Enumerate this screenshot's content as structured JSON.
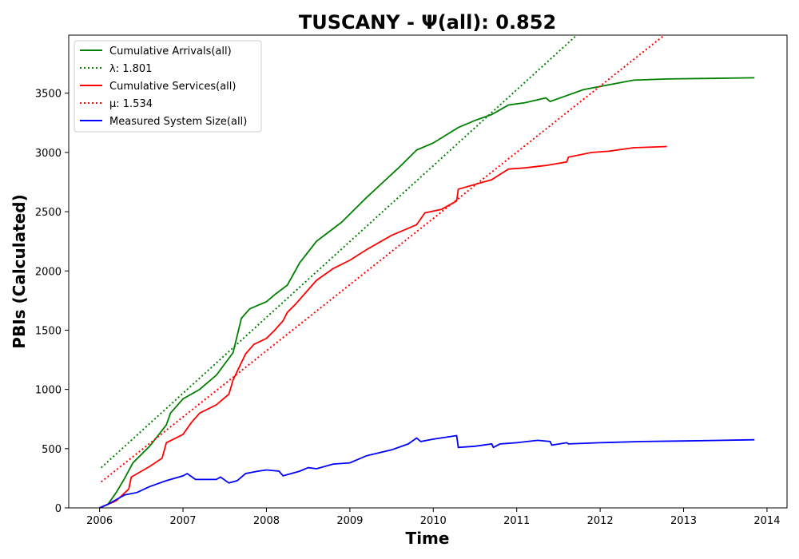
{
  "chart_data": {
    "type": "line",
    "title": "TUSCANY -  Ψ(all): 0.852",
    "xlabel": "Time",
    "ylabel": "PBIs (Calculated)",
    "xlim": [
      2005.63,
      2014.24
    ],
    "ylim": [
      0,
      3990
    ],
    "x_ticks": [
      2006,
      2007,
      2008,
      2009,
      2010,
      2011,
      2012,
      2013,
      2014
    ],
    "y_ticks": [
      0,
      500,
      1000,
      1500,
      2000,
      2500,
      3000,
      3500
    ],
    "grid": false,
    "legend_position": "upper-left",
    "series": [
      {
        "name": "Cumulative Arrivals(all)",
        "color": "#008000",
        "style": "solid",
        "points": [
          [
            2006.0,
            0
          ],
          [
            2006.1,
            30
          ],
          [
            2006.2,
            130
          ],
          [
            2006.3,
            250
          ],
          [
            2006.4,
            380
          ],
          [
            2006.6,
            520
          ],
          [
            2006.8,
            700
          ],
          [
            2006.85,
            800
          ],
          [
            2007.0,
            920
          ],
          [
            2007.2,
            1000
          ],
          [
            2007.4,
            1120
          ],
          [
            2007.6,
            1310
          ],
          [
            2007.7,
            1600
          ],
          [
            2007.8,
            1680
          ],
          [
            2008.0,
            1740
          ],
          [
            2008.1,
            1800
          ],
          [
            2008.25,
            1880
          ],
          [
            2008.4,
            2070
          ],
          [
            2008.6,
            2250
          ],
          [
            2008.9,
            2410
          ],
          [
            2009.0,
            2480
          ],
          [
            2009.2,
            2620
          ],
          [
            2009.4,
            2750
          ],
          [
            2009.6,
            2880
          ],
          [
            2009.8,
            3020
          ],
          [
            2010.0,
            3080
          ],
          [
            2010.3,
            3210
          ],
          [
            2010.5,
            3270
          ],
          [
            2010.7,
            3320
          ],
          [
            2010.9,
            3400
          ],
          [
            2011.1,
            3420
          ],
          [
            2011.35,
            3460
          ],
          [
            2011.4,
            3430
          ],
          [
            2011.6,
            3480
          ],
          [
            2011.8,
            3530
          ],
          [
            2012.1,
            3570
          ],
          [
            2012.4,
            3610
          ],
          [
            2012.8,
            3620
          ],
          [
            2013.3,
            3625
          ],
          [
            2013.85,
            3630
          ]
        ]
      },
      {
        "name": "λ: 1.801",
        "color": "#008000",
        "style": "dotted",
        "points": [
          [
            2006.02,
            340
          ],
          [
            2011.72,
            3990
          ]
        ]
      },
      {
        "name": "Cumulative Services(all)",
        "color": "#ff0000",
        "style": "solid",
        "points": [
          [
            2006.0,
            0
          ],
          [
            2006.2,
            60
          ],
          [
            2006.35,
            160
          ],
          [
            2006.38,
            260
          ],
          [
            2006.6,
            350
          ],
          [
            2006.75,
            420
          ],
          [
            2006.8,
            550
          ],
          [
            2007.0,
            620
          ],
          [
            2007.1,
            720
          ],
          [
            2007.2,
            800
          ],
          [
            2007.4,
            870
          ],
          [
            2007.55,
            960
          ],
          [
            2007.6,
            1080
          ],
          [
            2007.75,
            1300
          ],
          [
            2007.85,
            1380
          ],
          [
            2008.0,
            1430
          ],
          [
            2008.1,
            1500
          ],
          [
            2008.2,
            1580
          ],
          [
            2008.25,
            1650
          ],
          [
            2008.35,
            1720
          ],
          [
            2008.6,
            1920
          ],
          [
            2008.8,
            2020
          ],
          [
            2009.0,
            2090
          ],
          [
            2009.2,
            2180
          ],
          [
            2009.5,
            2300
          ],
          [
            2009.8,
            2390
          ],
          [
            2009.85,
            2440
          ],
          [
            2009.9,
            2490
          ],
          [
            2010.1,
            2520
          ],
          [
            2010.28,
            2590
          ],
          [
            2010.3,
            2690
          ],
          [
            2010.7,
            2770
          ],
          [
            2010.9,
            2860
          ],
          [
            2011.1,
            2870
          ],
          [
            2011.35,
            2890
          ],
          [
            2011.6,
            2920
          ],
          [
            2011.62,
            2960
          ],
          [
            2011.9,
            3000
          ],
          [
            2012.1,
            3010
          ],
          [
            2012.4,
            3040
          ],
          [
            2012.8,
            3050
          ]
        ]
      },
      {
        "name": "μ: 1.534",
        "color": "#ff0000",
        "style": "dotted",
        "points": [
          [
            2006.02,
            220
          ],
          [
            2012.77,
            3990
          ]
        ]
      },
      {
        "name": "Measured System Size(all)",
        "color": "#0000ff",
        "style": "solid",
        "points": [
          [
            2006.0,
            0
          ],
          [
            2006.1,
            30
          ],
          [
            2006.2,
            70
          ],
          [
            2006.3,
            110
          ],
          [
            2006.45,
            130
          ],
          [
            2006.6,
            180
          ],
          [
            2006.8,
            230
          ],
          [
            2007.0,
            270
          ],
          [
            2007.05,
            290
          ],
          [
            2007.15,
            240
          ],
          [
            2007.4,
            240
          ],
          [
            2007.45,
            260
          ],
          [
            2007.55,
            210
          ],
          [
            2007.65,
            230
          ],
          [
            2007.75,
            290
          ],
          [
            2007.9,
            310
          ],
          [
            2008.0,
            320
          ],
          [
            2008.15,
            310
          ],
          [
            2008.2,
            270
          ],
          [
            2008.4,
            310
          ],
          [
            2008.5,
            340
          ],
          [
            2008.6,
            330
          ],
          [
            2008.8,
            370
          ],
          [
            2009.0,
            380
          ],
          [
            2009.2,
            440
          ],
          [
            2009.5,
            490
          ],
          [
            2009.7,
            540
          ],
          [
            2009.8,
            590
          ],
          [
            2009.85,
            560
          ],
          [
            2010.0,
            580
          ],
          [
            2010.28,
            610
          ],
          [
            2010.3,
            510
          ],
          [
            2010.5,
            520
          ],
          [
            2010.7,
            540
          ],
          [
            2010.72,
            510
          ],
          [
            2010.8,
            540
          ],
          [
            2011.0,
            550
          ],
          [
            2011.25,
            570
          ],
          [
            2011.4,
            560
          ],
          [
            2011.42,
            530
          ],
          [
            2011.6,
            550
          ],
          [
            2011.62,
            540
          ],
          [
            2012.0,
            550
          ],
          [
            2012.5,
            560
          ],
          [
            2013.0,
            565
          ],
          [
            2013.85,
            575
          ]
        ]
      }
    ]
  }
}
